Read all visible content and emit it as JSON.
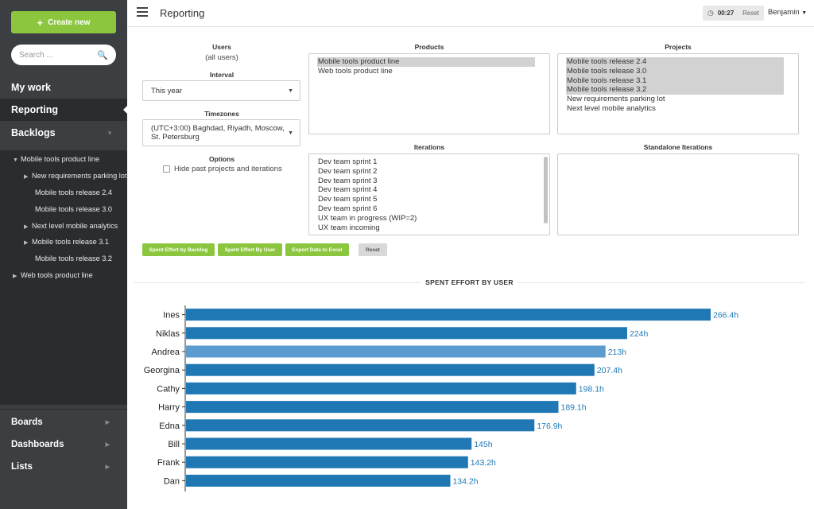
{
  "sidebar": {
    "create_label": "Create new",
    "search_placeholder": "Search ...",
    "main_items": [
      {
        "label": "My work"
      },
      {
        "label": "Reporting"
      },
      {
        "label": "Backlogs"
      }
    ],
    "tree": [
      {
        "label": "Mobile tools product line",
        "expanded": true
      },
      {
        "label": "New requirements parking lot",
        "has_children": true
      },
      {
        "label": "Mobile tools release 2.4",
        "has_children": false
      },
      {
        "label": "Mobile tools release 3.0",
        "has_children": false
      },
      {
        "label": "Next level mobile analytics",
        "has_children": true
      },
      {
        "label": "Mobile tools release 3.1",
        "has_children": true
      },
      {
        "label": "Mobile tools release 3.2",
        "has_children": false
      },
      {
        "label": "Web tools product line",
        "has_children": true
      }
    ],
    "bottom_items": [
      {
        "label": "Boards"
      },
      {
        "label": "Dashboards"
      },
      {
        "label": "Lists"
      }
    ]
  },
  "topbar": {
    "title": "Reporting",
    "timer_time": "00:27",
    "timer_reset": "Reset",
    "user_name": "Benjamin"
  },
  "filters": {
    "users_title": "Users",
    "users_value": "(all users)",
    "interval_title": "Interval",
    "interval_value": "This year",
    "timezones_title": "Timezones",
    "timezone_value": "(UTC+3:00) Baghdad, Riyadh, Moscow, St. Petersburg",
    "options_title": "Options",
    "hide_past_label": "Hide past projects and iterations",
    "products_title": "Products",
    "products": [
      {
        "label": "Mobile tools product line",
        "selected": true
      },
      {
        "label": "Web tools product line",
        "selected": false
      }
    ],
    "projects_title": "Projects",
    "projects": [
      {
        "label": "Mobile tools release 2.4",
        "selected": true
      },
      {
        "label": "Mobile tools release 3.0",
        "selected": true
      },
      {
        "label": "Mobile tools release 3.1",
        "selected": true
      },
      {
        "label": "Mobile tools release 3.2",
        "selected": true
      },
      {
        "label": "New requirements parking lot",
        "selected": false
      },
      {
        "label": "Next level mobile analytics",
        "selected": false
      }
    ],
    "iterations_title": "Iterations",
    "iterations": [
      {
        "label": "Dev team sprint 1"
      },
      {
        "label": "Dev team sprint 2"
      },
      {
        "label": "Dev team sprint 3"
      },
      {
        "label": "Dev team sprint 4"
      },
      {
        "label": "Dev team sprint 5"
      },
      {
        "label": "Dev team sprint 6"
      },
      {
        "label": "UX team in progress (WIP=2)"
      },
      {
        "label": "UX team incoming"
      }
    ],
    "standalone_title": "Standalone Iterations"
  },
  "actions": {
    "by_backlog": "Spent Effort by Backlog",
    "by_user": "Spent Effort By User",
    "export": "Export Data to Excel",
    "reset": "Reset"
  },
  "chart_title": "SPENT EFFORT BY USER",
  "chart_data": {
    "type": "bar",
    "orientation": "horizontal",
    "categories": [
      "Ines",
      "Niklas",
      "Andrea",
      "Georgina",
      "Cathy",
      "Harry",
      "Edna",
      "Bill",
      "Frank",
      "Dan"
    ],
    "values": [
      266.4,
      224,
      213,
      207.4,
      198.1,
      189.1,
      176.9,
      145,
      143.2,
      134.2
    ],
    "value_labels": [
      "266.4h",
      "224h",
      "213h",
      "207.4h",
      "198.1h",
      "189.1h",
      "176.9h",
      "145h",
      "143.2h",
      "134.2h"
    ],
    "highlighted": "Andrea",
    "colors": {
      "bar": "#1f78b4",
      "highlight": "#5a9bd0",
      "label": "#1f78b4"
    }
  }
}
